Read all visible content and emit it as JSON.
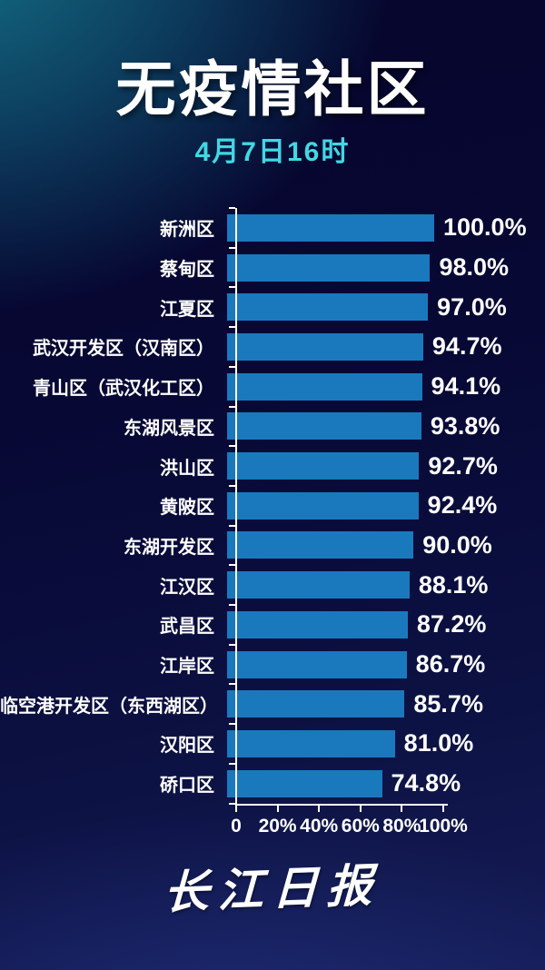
{
  "header": {
    "title": "无疫情社区",
    "subtitle": "4月7日16时"
  },
  "chart_data": {
    "type": "bar",
    "orientation": "horizontal",
    "title": "无疫情社区",
    "subtitle": "4月7日16时",
    "xlabel": "",
    "ylabel": "",
    "xlim": [
      0,
      100
    ],
    "grid": false,
    "legend": "none",
    "bar_color": "#1a79bd",
    "categories": [
      "新洲区",
      "蔡甸区",
      "江夏区",
      "武汉开发区（汉南区）",
      "青山区（武汉化工区）",
      "东湖风景区",
      "洪山区",
      "黄陂区",
      "东湖开发区",
      "江汉区",
      "武昌区",
      "江岸区",
      "临空港开发区（东西湖区）",
      "汉阳区",
      "硚口区"
    ],
    "values": [
      100.0,
      98.0,
      97.0,
      94.7,
      94.1,
      93.8,
      92.7,
      92.4,
      90.0,
      88.1,
      87.2,
      86.7,
      85.7,
      81.0,
      74.8
    ],
    "value_labels": [
      "100.0%",
      "98.0%",
      "97.0%",
      "94.7%",
      "94.1%",
      "93.8%",
      "92.7%",
      "92.4%",
      "90.0%",
      "88.1%",
      "87.2%",
      "86.7%",
      "85.7%",
      "81.0%",
      "74.8%"
    ],
    "x_ticks": [
      {
        "value": 0,
        "label": "0"
      },
      {
        "value": 20,
        "label": "20%"
      },
      {
        "value": 40,
        "label": "40%"
      },
      {
        "value": 60,
        "label": "60%"
      },
      {
        "value": 80,
        "label": "80%"
      },
      {
        "value": 100,
        "label": "100%"
      }
    ]
  },
  "footer": {
    "logo_text": "长江日报"
  },
  "colors": {
    "background_teal": "#137086",
    "background_navy_dark": "#06052c",
    "background_navy_bottom": "#1b2767",
    "bar": "#1a79bd",
    "accent_cyan": "#41d8e4",
    "text": "#ffffff"
  }
}
